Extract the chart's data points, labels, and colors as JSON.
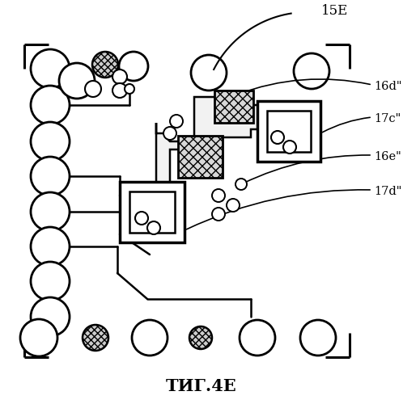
{
  "title": "ΤИГ.4Е",
  "label_15E": "15Е",
  "label_16d": "16d\"",
  "label_17c": "17c\"",
  "label_16e": "16e\"",
  "label_17d": "17d\"",
  "bg_color": "#ffffff",
  "line_color": "#000000"
}
